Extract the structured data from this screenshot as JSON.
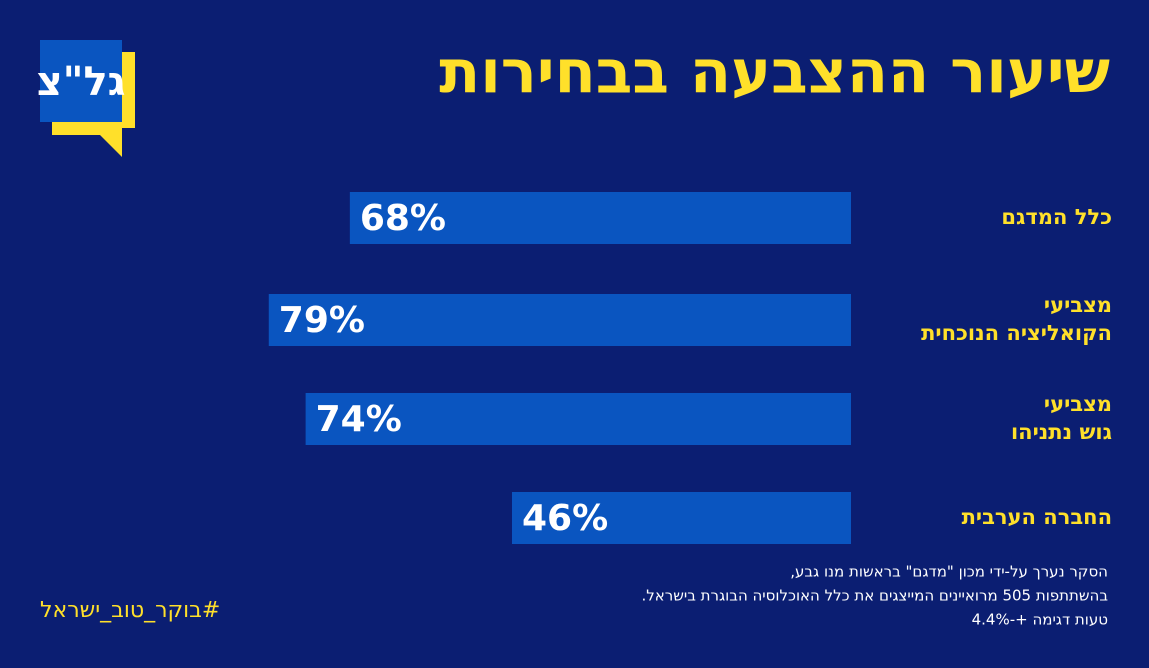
{
  "logo": "גל\"צ",
  "chart_data": {
    "type": "bar",
    "orientation": "horizontal",
    "title": "שיעור ההצבעה בבחירות",
    "categories": [
      [
        "כלל המדגם"
      ],
      [
        "מצביעי",
        "הקואליציה הנוכחית"
      ],
      [
        "מצביעי",
        "גוש נתניהו"
      ],
      [
        "החברה הערבית"
      ]
    ],
    "values": [
      68,
      79,
      74,
      46
    ],
    "value_labels": [
      "68%",
      "79%",
      "74%",
      "46%"
    ],
    "color": "#0a55c0"
  },
  "footnote": [
    "הסקר נערך על-ידי מכון \"מדגם\" בראשות מנו גבע,",
    "בהשתתפות 505 מרואיינים המייצגים את כלל האוכלוסיה הבוגרת בישראל.",
    "טעות דגימה +-4.4%"
  ],
  "hashtag": "#בוקר_טוב_ישראל"
}
